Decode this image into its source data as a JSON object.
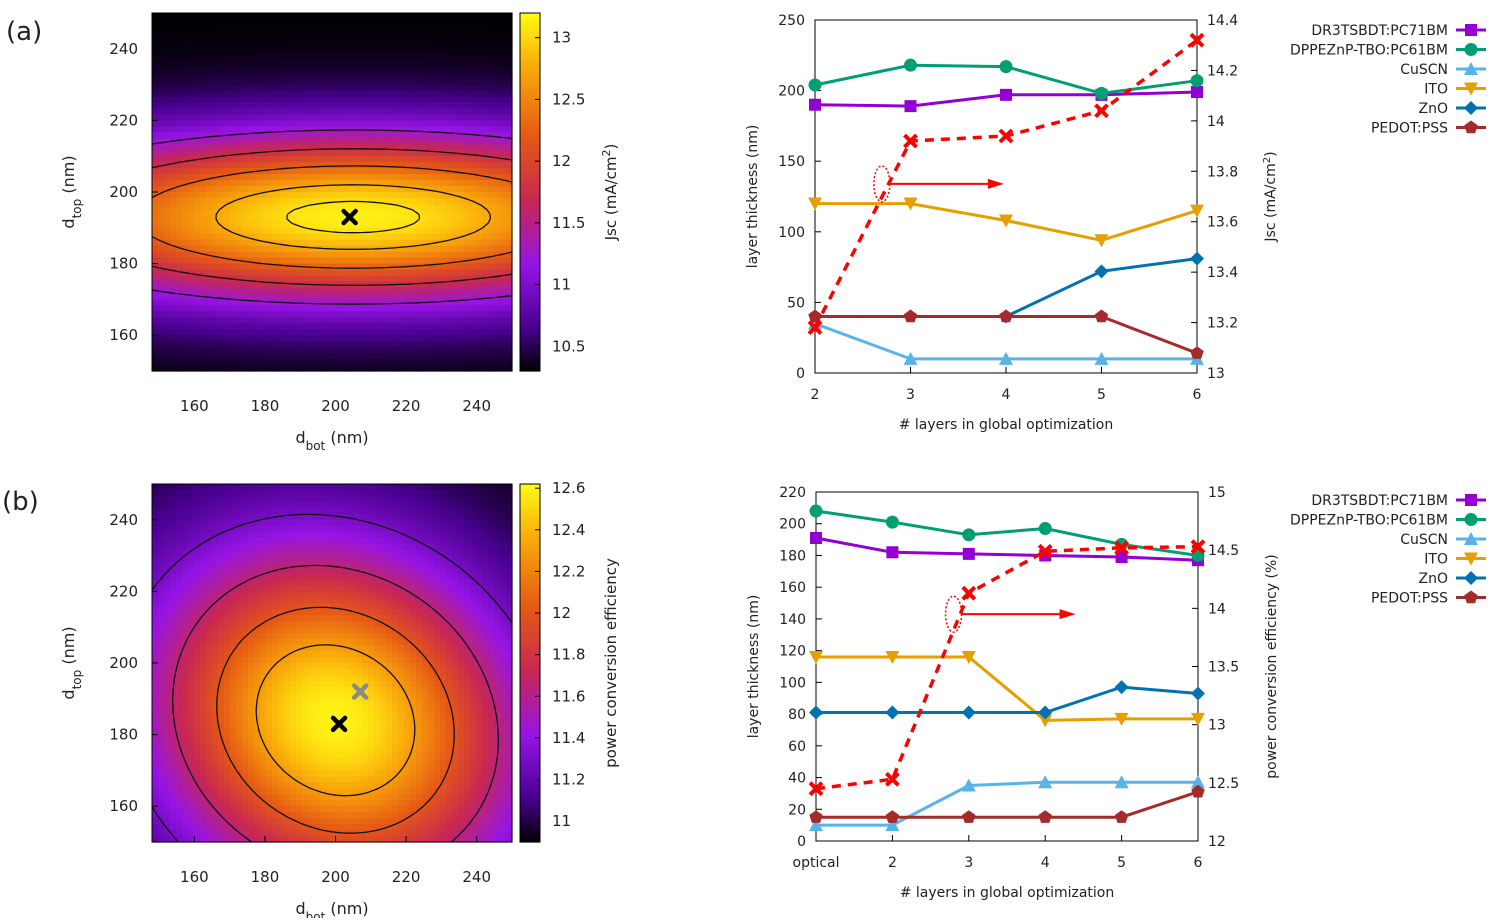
{
  "panels": {
    "a": {
      "label": "(a)"
    },
    "b": {
      "label": "(b)"
    }
  },
  "chart_data": [
    {
      "id": "a_map",
      "type": "heatmap",
      "title": "",
      "xlabel_main": "d",
      "xlabel_sub": "bot",
      "xlabel_unit": " (nm)",
      "ylabel_main": "d",
      "ylabel_sub": "top",
      "ylabel_unit": " (nm)",
      "xlim": [
        148,
        250
      ],
      "ylim": [
        150,
        250
      ],
      "xticks": [
        160,
        180,
        200,
        220,
        240
      ],
      "yticks": [
        160,
        180,
        200,
        220,
        240
      ],
      "colorbar": {
        "label": "Jsc (mA/cm",
        "label_sup": "2",
        "label_end": ")",
        "range": [
          10.3,
          13.2
        ],
        "ticks": [
          10.5,
          11,
          11.5,
          12,
          12.5,
          13
        ],
        "tick_labels": [
          "10.5",
          "11",
          "11.5",
          "12",
          "12.5",
          "13"
        ]
      },
      "model": {
        "center": [
          205,
          193
        ],
        "peak": 13.15,
        "floor": 10.3,
        "sx": 95,
        "sy": 22,
        "tilt": 0.0
      },
      "contours": [
        11.25,
        11.75,
        12.25,
        12.75,
        13.05
      ],
      "markers": [
        {
          "x": 204,
          "y": 193,
          "color": "#000000"
        }
      ]
    },
    {
      "id": "a_line",
      "type": "line",
      "xlabel": "# layers in global optimization",
      "ylabel": "layer thickness (nm)",
      "y2label": "Jsc (mA/cm",
      "y2label_sup": "2",
      "y2label_end": ")",
      "categories": [
        "2",
        "3",
        "4",
        "5",
        "6"
      ],
      "ylim": [
        0,
        250
      ],
      "yticks": [
        0,
        50,
        100,
        150,
        200,
        250
      ],
      "y2lim": [
        13.0,
        14.4
      ],
      "y2ticks": [
        13,
        13.2,
        13.4,
        13.6,
        13.8,
        14,
        14.2,
        14.4
      ],
      "y2tick_labels": [
        "13",
        "13.2",
        "13.4",
        "13.6",
        "13.8",
        "14",
        "14.2",
        "14.4"
      ],
      "series": [
        {
          "name": "DR3TSBDT:PC71BM",
          "color": "#9400d3",
          "marker": "square",
          "values": [
            190,
            189,
            197,
            197,
            199
          ]
        },
        {
          "name": "DPPEZnP-TBO:PC61BM",
          "color": "#009e73",
          "marker": "circle",
          "values": [
            204,
            218,
            217,
            198,
            207
          ]
        },
        {
          "name": "CuSCN",
          "color": "#56b4e9",
          "marker": "triangle-up",
          "values": [
            35,
            10,
            10,
            10,
            10
          ]
        },
        {
          "name": "ITO",
          "color": "#e69f00",
          "marker": "triangle-down",
          "values": [
            120,
            120,
            108,
            94,
            115
          ]
        },
        {
          "name": "ZnO",
          "color": "#0072b2",
          "marker": "diamond",
          "values": [
            null,
            null,
            40,
            72,
            81
          ]
        },
        {
          "name": "PEDOT:PSS",
          "color": "#a52a2a",
          "marker": "pentagon",
          "values": [
            40,
            40,
            40,
            40,
            14
          ]
        }
      ],
      "secondary": {
        "name": "Jsc",
        "color": "#ff0000",
        "values": [
          13.18,
          13.92,
          13.94,
          14.04,
          14.32
        ]
      },
      "legend_position": "right"
    },
    {
      "id": "b_map",
      "type": "heatmap",
      "title": "",
      "xlabel_main": "d",
      "xlabel_sub": "bot",
      "xlabel_unit": " (nm)",
      "ylabel_main": "d",
      "ylabel_sub": "top",
      "ylabel_unit": " (nm)",
      "xlim": [
        148,
        250
      ],
      "ylim": [
        150,
        250
      ],
      "xticks": [
        160,
        180,
        200,
        220,
        240
      ],
      "yticks": [
        160,
        180,
        200,
        220,
        240
      ],
      "colorbar": {
        "label": "power conversion efficiency",
        "label_sup": "",
        "label_end": "",
        "range": [
          10.9,
          12.62
        ],
        "ticks": [
          11,
          11.2,
          11.4,
          11.6,
          11.8,
          12,
          12.2,
          12.4,
          12.6
        ],
        "tick_labels": [
          "11",
          "11.2",
          "11.4",
          "11.6",
          "11.8",
          "12",
          "12.2",
          "12.4",
          "12.6"
        ]
      },
      "model": {
        "center": [
          200,
          184
        ],
        "peak": 12.6,
        "floor": 10.9,
        "sx": 48,
        "sy": 45,
        "tilt": 0.25
      },
      "contours": [
        11.3,
        11.65,
        12.0,
        12.3
      ],
      "markers": [
        {
          "x": 207,
          "y": 192,
          "color": "#8a8a8a"
        },
        {
          "x": 201,
          "y": 183,
          "color": "#000000"
        }
      ]
    },
    {
      "id": "b_line",
      "type": "line",
      "xlabel": "# layers in global optimization",
      "ylabel": "layer thickness (nm)",
      "y2label": "power conversion efficiency (%)",
      "y2label_sup": "",
      "y2label_end": "",
      "categories": [
        "optical",
        "2",
        "3",
        "4",
        "5",
        "6"
      ],
      "ylim": [
        0,
        220
      ],
      "yticks": [
        0,
        20,
        40,
        60,
        80,
        100,
        120,
        140,
        160,
        180,
        200,
        220
      ],
      "y2lim": [
        12,
        15
      ],
      "y2ticks": [
        12,
        12.5,
        13,
        13.5,
        14,
        14.5,
        15
      ],
      "y2tick_labels": [
        "12",
        "12.5",
        "13",
        "13.5",
        "14",
        "14.5",
        "15"
      ],
      "series": [
        {
          "name": "DR3TSBDT:PC71BM",
          "color": "#9400d3",
          "marker": "square",
          "values": [
            191,
            182,
            181,
            180,
            179,
            177
          ]
        },
        {
          "name": "DPPEZnP-TBO:PC61BM",
          "color": "#009e73",
          "marker": "circle",
          "values": [
            208,
            201,
            193,
            197,
            187,
            180
          ]
        },
        {
          "name": "CuSCN",
          "color": "#56b4e9",
          "marker": "triangle-up",
          "values": [
            10,
            10,
            35,
            37,
            37,
            37
          ]
        },
        {
          "name": "ITO",
          "color": "#e69f00",
          "marker": "triangle-down",
          "values": [
            116,
            116,
            116,
            76,
            77,
            77
          ]
        },
        {
          "name": "ZnO",
          "color": "#0072b2",
          "marker": "diamond",
          "values": [
            81,
            81,
            81,
            81,
            97,
            93
          ]
        },
        {
          "name": "PEDOT:PSS",
          "color": "#a52a2a",
          "marker": "pentagon",
          "values": [
            15,
            15,
            15,
            15,
            15,
            31
          ]
        }
      ],
      "secondary": {
        "name": "PCE",
        "color": "#ff0000",
        "values": [
          12.45,
          12.53,
          14.13,
          14.49,
          14.52,
          14.53
        ]
      },
      "legend_position": "right"
    }
  ]
}
